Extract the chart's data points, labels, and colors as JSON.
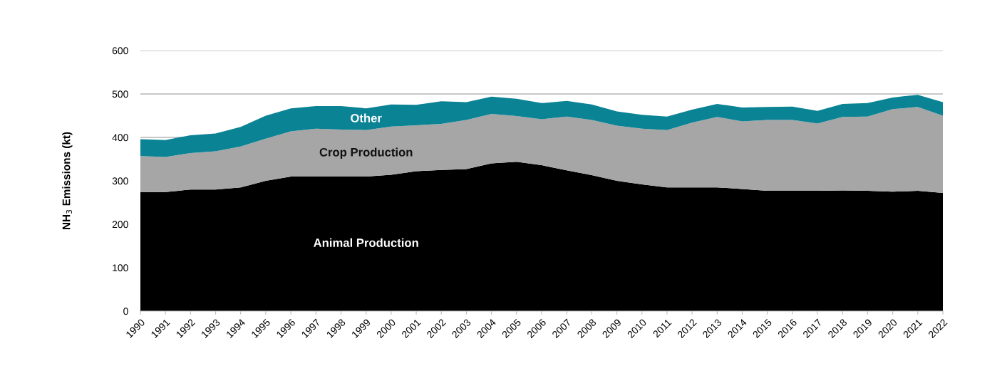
{
  "chart_data": {
    "type": "area",
    "stacked": true,
    "ylabel": "NH$_{3}$ Emissions (kt)",
    "categories": [
      "1990",
      "1991",
      "1992",
      "1993",
      "1994",
      "1995",
      "1996",
      "1997",
      "1998",
      "1999",
      "2000",
      "2001",
      "2002",
      "2003",
      "2004",
      "2005",
      "2006",
      "2007",
      "2008",
      "2009",
      "2010",
      "2011",
      "2012",
      "2013",
      "2014",
      "2015",
      "2016",
      "2017",
      "2018",
      "2019",
      "2020",
      "2021",
      "2022"
    ],
    "series": [
      {
        "name": "Animal Production",
        "color": "#000000",
        "values": [
          274,
          274,
          280,
          280,
          285,
          300,
          310,
          310,
          310,
          310,
          314,
          322,
          325,
          327,
          340,
          344,
          336,
          324,
          313,
          300,
          292,
          285,
          285,
          285,
          281,
          277,
          277,
          277,
          278,
          277,
          275,
          277,
          272
        ]
      },
      {
        "name": "Crop Production",
        "color": "#a6a6a6",
        "values": [
          83,
          81,
          84,
          88,
          94,
          97,
          104,
          110,
          108,
          107,
          111,
          106,
          106,
          113,
          114,
          105,
          106,
          124,
          127,
          127,
          128,
          132,
          149,
          162,
          156,
          163,
          163,
          155,
          169,
          171,
          190,
          193,
          178
        ]
      },
      {
        "name": "Other",
        "color": "#0a8394",
        "values": [
          39,
          39,
          41,
          41,
          45,
          53,
          53,
          52,
          54,
          50,
          51,
          47,
          52,
          41,
          40,
          40,
          37,
          36,
          36,
          33,
          32,
          31,
          30,
          30,
          32,
          30,
          31,
          29,
          30,
          31,
          27,
          28,
          31
        ]
      }
    ],
    "ylim": [
      0,
      600
    ],
    "yticks": [
      0,
      100,
      200,
      300,
      400,
      500,
      600
    ],
    "grid": "y",
    "legend": false
  }
}
